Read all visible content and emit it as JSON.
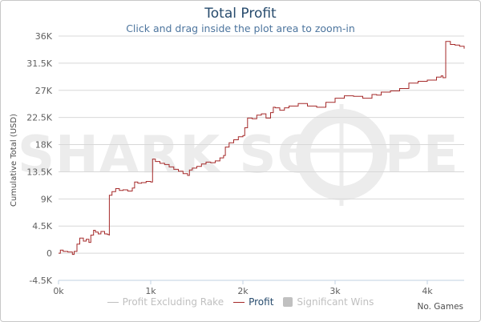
{
  "title": "Total Profit",
  "subtitle": "Click and drag inside the plot area to zoom-in",
  "watermark": {
    "left": "SHARK SC",
    "right": "PE"
  },
  "legend": [
    {
      "label": "Profit Excluding Rake",
      "color": "#c0c0c0",
      "kind": "line",
      "active": false
    },
    {
      "label": "Profit",
      "color": "#a52a2a",
      "kind": "line",
      "active": true
    },
    {
      "label": "Significant Wins",
      "color": "#c0c0c0",
      "kind": "box",
      "active": false
    }
  ],
  "colors": {
    "profit_line": "#a52a2a",
    "label_active": "#274b6d",
    "label_inactive": "#c0c0c0",
    "grid": "#d8d8d8"
  },
  "chart_data": {
    "type": "line",
    "title": "Total Profit",
    "subtitle": "Click and drag inside the plot area to zoom-in",
    "xlabel": "No. Games",
    "ylabel": "Cumulative Total (USD)",
    "xlim": [
      0,
      4400
    ],
    "ylim": [
      -4500,
      36000
    ],
    "xticks": [
      0,
      1000,
      2000,
      3000,
      4000
    ],
    "xtick_labels": [
      "0k",
      "1k",
      "2k",
      "3k",
      "4k"
    ],
    "yticks": [
      -4500,
      0,
      4500,
      9000,
      13500,
      18000,
      22500,
      27000,
      31500,
      36000
    ],
    "ytick_labels": [
      "-4.5K",
      "0",
      "4.5K",
      "9K",
      "13.5K",
      "18K",
      "22.5K",
      "27K",
      "31.5K",
      "36K"
    ],
    "grid": true,
    "series": [
      {
        "name": "Profit",
        "x": [
          0,
          20,
          50,
          100,
          150,
          170,
          200,
          230,
          270,
          300,
          330,
          350,
          380,
          400,
          430,
          460,
          500,
          530,
          549,
          551,
          580,
          620,
          660,
          700,
          750,
          800,
          825,
          860,
          900,
          950,
          1000,
          1020,
          1050,
          1100,
          1150,
          1200,
          1250,
          1300,
          1350,
          1400,
          1420,
          1450,
          1500,
          1550,
          1600,
          1650,
          1700,
          1750,
          1790,
          1810,
          1850,
          1900,
          1950,
          2000,
          2020,
          2050,
          2100,
          2150,
          2200,
          2250,
          2300,
          2330,
          2350,
          2400,
          2450,
          2500,
          2600,
          2700,
          2800,
          2900,
          3000,
          3100,
          3200,
          3300,
          3400,
          3450,
          3500,
          3600,
          3700,
          3800,
          3900,
          4000,
          4100,
          4150,
          4170,
          4200,
          4250,
          4300,
          4350,
          4400
        ],
        "y": [
          0,
          500,
          300,
          200,
          -200,
          300,
          1500,
          2500,
          2000,
          2300,
          1800,
          3000,
          3800,
          3500,
          3200,
          3600,
          3200,
          3100,
          3000,
          9600,
          10200,
          10700,
          10400,
          10500,
          10300,
          10800,
          11800,
          11600,
          11700,
          11900,
          11800,
          15600,
          15200,
          14900,
          14700,
          14300,
          13900,
          13600,
          13200,
          12900,
          13800,
          14100,
          14400,
          14800,
          15100,
          15000,
          15300,
          15800,
          16200,
          17600,
          18300,
          18800,
          19300,
          19500,
          20800,
          22400,
          22300,
          22900,
          23100,
          22400,
          23300,
          24200,
          24100,
          23700,
          24100,
          24400,
          24800,
          24400,
          24200,
          25000,
          25700,
          26100,
          26000,
          25700,
          26300,
          26200,
          26700,
          26900,
          27300,
          28200,
          28500,
          28700,
          29200,
          29400,
          29100,
          35100,
          34600,
          34500,
          34300,
          33900
        ]
      }
    ]
  }
}
